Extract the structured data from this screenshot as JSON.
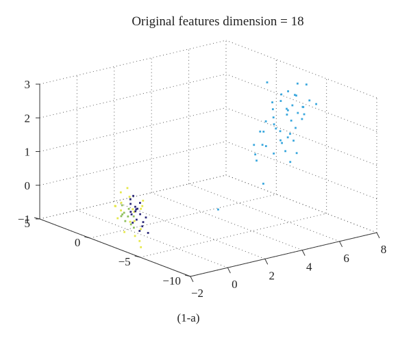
{
  "chart_data": {
    "type": "scatter3d",
    "title": "Original features dimension = 18",
    "caption": "(1-a)",
    "xlim": [
      -2,
      8
    ],
    "ylim": [
      -10,
      5
    ],
    "zlim": [
      -1,
      3
    ],
    "x_ticks": [
      "−2",
      "0",
      "2",
      "4",
      "6",
      "8"
    ],
    "y_ticks": [
      "5",
      "0",
      "−5",
      "−10"
    ],
    "z_ticks": [
      "−1",
      "0",
      "1",
      "2",
      "3"
    ],
    "grid": true,
    "colors": {
      "cluster_blue": "#3aa7dd",
      "cluster_navy": "#2d2a7a",
      "cluster_green": "#8fbf5c",
      "cluster_yellow": "#e6e84a"
    },
    "series": [
      {
        "color": "#3aa7dd",
        "points": [
          [
            6.8,
            -3.4,
            2.6
          ],
          [
            5.9,
            -3.5,
            2.4
          ],
          [
            7.2,
            -3.6,
            2.8
          ],
          [
            6.4,
            -4.0,
            2.2
          ],
          [
            6.6,
            -4.2,
            2.3
          ],
          [
            6.2,
            -4.4,
            2.1
          ],
          [
            6.9,
            -4.6,
            1.9
          ],
          [
            5.8,
            -3.8,
            2.0
          ],
          [
            5.5,
            -3.6,
            1.9
          ],
          [
            6.0,
            -4.1,
            1.6
          ],
          [
            6.3,
            -4.3,
            1.4
          ],
          [
            6.5,
            -4.5,
            1.3
          ],
          [
            6.1,
            -3.3,
            1.7
          ],
          [
            5.7,
            -3.0,
            1.5
          ],
          [
            5.4,
            -3.8,
            1.2
          ],
          [
            6.7,
            -3.9,
            1.8
          ],
          [
            7.0,
            -4.0,
            2.0
          ],
          [
            7.1,
            -4.3,
            2.2
          ],
          [
            6.8,
            -5.0,
            2.1
          ],
          [
            7.3,
            -4.6,
            2.4
          ],
          [
            6.6,
            -3.1,
            2.5
          ],
          [
            6.2,
            -3.0,
            2.1
          ],
          [
            5.9,
            -4.8,
            1.1
          ],
          [
            6.4,
            -5.0,
            1.0
          ],
          [
            6.0,
            -5.1,
            0.8
          ],
          [
            5.6,
            -4.2,
            1.0
          ],
          [
            5.3,
            -3.4,
            1.6
          ],
          [
            5.2,
            -3.1,
            0.9
          ],
          [
            5.0,
            -3.6,
            0.8
          ],
          [
            5.1,
            -4.0,
            1.3
          ],
          [
            6.9,
            -3.2,
            2.0
          ],
          [
            7.4,
            -3.8,
            2.1
          ],
          [
            6.3,
            -3.6,
            2.4
          ],
          [
            6.5,
            -4.7,
            1.7
          ],
          [
            5.8,
            -4.5,
            1.4
          ],
          [
            6.1,
            -4.9,
            1.6
          ],
          [
            6.7,
            -4.4,
            2.6
          ],
          [
            7.0,
            -3.7,
            2.5
          ],
          [
            5.5,
            -4.6,
            1.8
          ],
          [
            6.2,
            -3.9,
            1.2
          ],
          [
            7.5,
            -4.9,
            2.3
          ],
          [
            5.4,
            -2.6,
            1.1
          ],
          [
            6.0,
            -2.8,
            2.9
          ],
          [
            8.0,
            -3.0,
            2.6
          ],
          [
            2.4,
            -4.6,
            -0.2
          ],
          [
            3.8,
            -6.5,
            0.6
          ]
        ]
      },
      {
        "color": "#e6e84a",
        "points": [
          [
            -1.4,
            -2.0,
            0.2
          ],
          [
            -1.2,
            -1.6,
            -0.1
          ],
          [
            -1.0,
            -2.4,
            0.0
          ],
          [
            -0.9,
            -1.9,
            0.3
          ],
          [
            -1.3,
            -2.7,
            -0.3
          ],
          [
            -0.8,
            -2.2,
            -0.4
          ],
          [
            -1.1,
            -1.4,
            0.4
          ],
          [
            -0.7,
            -2.8,
            0.1
          ],
          [
            -1.5,
            -2.5,
            -0.6
          ],
          [
            -0.6,
            -1.8,
            -0.2
          ],
          [
            -1.2,
            -3.0,
            -0.7
          ],
          [
            -0.9,
            -2.9,
            -0.9
          ],
          [
            -1.6,
            -1.8,
            0.1
          ],
          [
            -0.5,
            -2.5,
            0.2
          ],
          [
            -1.0,
            -3.2,
            -0.5
          ],
          [
            -1.3,
            -1.2,
            0.0
          ],
          [
            -0.4,
            -2.1,
            -0.1
          ],
          [
            -1.7,
            -2.2,
            -0.2
          ],
          [
            -1.1,
            -3.4,
            -1.0
          ],
          [
            -0.8,
            -1.5,
            0.5
          ]
        ]
      },
      {
        "color": "#8fbf5c",
        "points": [
          [
            -1.3,
            -2.1,
            -0.1
          ],
          [
            -1.2,
            -2.3,
            -0.2
          ],
          [
            -1.4,
            -2.4,
            -0.3
          ],
          [
            -1.1,
            -2.2,
            0.0
          ],
          [
            -1.5,
            -2.3,
            -0.1
          ],
          [
            -1.2,
            -2.6,
            -0.4
          ],
          [
            -1.3,
            -1.9,
            0.1
          ],
          [
            -1.0,
            -2.5,
            -0.2
          ],
          [
            -1.4,
            -2.0,
            -0.2
          ],
          [
            -1.1,
            -2.7,
            -0.5
          ]
        ]
      },
      {
        "color": "#2d2a7a",
        "points": [
          [
            -0.9,
            -2.0,
            0.1
          ],
          [
            -0.8,
            -2.3,
            -0.1
          ],
          [
            -0.7,
            -2.1,
            0.0
          ],
          [
            -0.9,
            -2.6,
            -0.3
          ],
          [
            -0.6,
            -2.4,
            -0.2
          ],
          [
            -0.8,
            -1.8,
            0.2
          ],
          [
            -1.0,
            -2.2,
            -0.1
          ],
          [
            -0.7,
            -2.8,
            -0.5
          ],
          [
            -0.5,
            -2.2,
            0.1
          ],
          [
            -0.9,
            -2.9,
            -0.6
          ],
          [
            -0.6,
            -2.7,
            -0.4
          ],
          [
            -0.8,
            -2.5,
            0.0
          ],
          [
            -0.4,
            -2.6,
            -0.3
          ],
          [
            -1.0,
            -2.4,
            -0.4
          ],
          [
            -0.7,
            -1.9,
            0.3
          ],
          [
            -0.5,
            -3.0,
            -0.7
          ],
          [
            -0.6,
            -2.0,
            -0.1
          ],
          [
            -0.9,
            -2.1,
            -0.2
          ]
        ]
      }
    ]
  }
}
